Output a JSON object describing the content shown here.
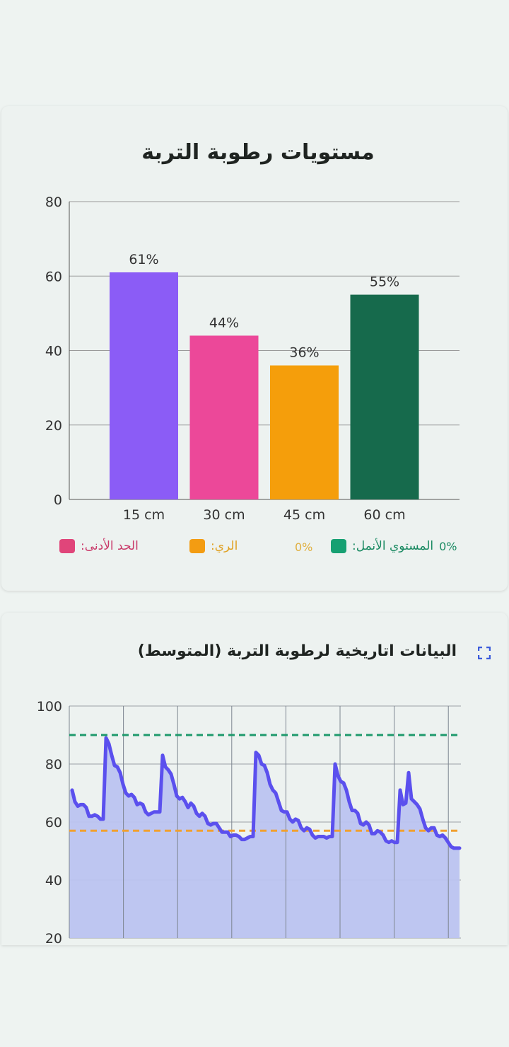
{
  "chart_data": [
    {
      "type": "bar",
      "title": "مستويات رطوبة التربة",
      "categories": [
        "15 cm",
        "30 cm",
        "45 cm",
        "60 cm"
      ],
      "values": [
        61,
        44,
        36,
        55
      ],
      "data_labels": [
        "61%",
        "44%",
        "36%",
        "55%"
      ],
      "colors": [
        "#8b5cf6",
        "#ec4899",
        "#f59e0b",
        "#166a4c"
      ],
      "ylim": [
        0,
        80
      ],
      "yticks": [
        0,
        20,
        40,
        60,
        80
      ],
      "grid": true,
      "legend": [
        {
          "label": "الحد الأدنى",
          "value": "",
          "color": "#e0457a"
        },
        {
          "label": "الري",
          "value": "0%",
          "color": "#f39c12"
        },
        {
          "label": "المستوي الأنمل",
          "value": "0%",
          "color": "#16a072"
        }
      ],
      "legend_placement": "bottom"
    },
    {
      "type": "area",
      "title": "البيانات اتاريخية لرطوبة التربة (المتوسط)",
      "ylim": [
        20,
        100
      ],
      "yticks": [
        20,
        40,
        60,
        80,
        100
      ],
      "grid": true,
      "line_color": "#5b50ee",
      "fill_color": "#bcc3f0",
      "reference_lines": [
        {
          "value": 90,
          "color": "#1e9a6c"
        },
        {
          "value": 57,
          "color": "#f0a030"
        }
      ],
      "values": [
        71,
        67,
        65.5,
        66,
        66,
        65,
        62,
        62,
        62.5,
        62,
        61,
        61,
        89,
        87,
        83,
        79.5,
        79,
        77,
        73,
        70,
        69,
        69.5,
        68.5,
        66,
        66.5,
        66,
        63.5,
        62.5,
        63,
        63.5,
        63.5,
        63.5,
        83,
        79,
        78,
        76.5,
        73,
        69,
        68,
        68.5,
        67,
        65,
        66.5,
        65.5,
        63,
        62,
        63,
        62,
        59.5,
        59,
        59.5,
        59.5,
        58,
        56.5,
        56.5,
        56.5,
        55,
        55.5,
        55.5,
        55,
        54,
        54,
        54.5,
        55,
        55,
        84,
        83,
        80,
        79.5,
        77,
        73,
        71,
        70,
        67,
        64,
        63.5,
        63.5,
        61,
        60,
        61,
        60.5,
        58,
        57,
        58,
        57.5,
        55.5,
        54.5,
        55,
        55,
        55,
        54.5,
        55,
        55,
        80,
        76,
        74,
        73.5,
        71,
        67,
        64,
        64,
        63,
        59.5,
        59,
        60,
        59,
        56,
        56,
        57,
        56.5,
        55.5,
        53.5,
        53,
        53.5,
        53,
        53,
        71,
        66,
        66.5,
        77,
        68,
        67,
        66,
        64.5,
        61,
        58,
        57,
        58,
        58,
        55.5,
        55,
        55.5,
        54.5,
        53,
        51.5,
        51,
        51,
        51
      ]
    }
  ],
  "icons": {
    "expand": "expand-icon",
    "expand_color": "#3b5bdb"
  }
}
